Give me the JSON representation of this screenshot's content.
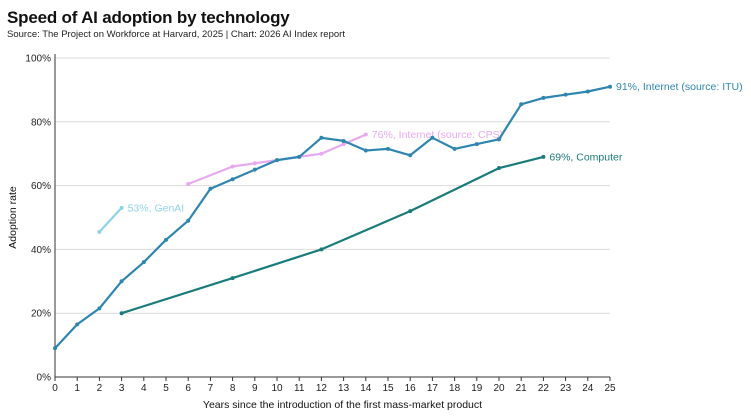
{
  "header": {
    "title": "Speed of AI adoption by technology",
    "subtitle": "Source: The Project on Workforce at Harvard, 2025 | Chart: 2026 AI Index report"
  },
  "chart_data": {
    "type": "line",
    "title": "Speed of AI adoption by technology",
    "subtitle": "Source: The Project on Workforce at Harvard, 2025 | Chart: 2026 AI Index report",
    "xlabel": "Years since the introduction of the first mass-market product",
    "ylabel": "Adoption rate",
    "xlim": [
      0,
      25
    ],
    "ylim": [
      0,
      100
    ],
    "xticks": [
      "0",
      "1",
      "2",
      "3",
      "4",
      "5",
      "6",
      "7",
      "8",
      "9",
      "10",
      "11",
      "12",
      "13",
      "14",
      "15",
      "16",
      "17",
      "18",
      "19",
      "20",
      "21",
      "22",
      "23",
      "24",
      "25"
    ],
    "yticks": [
      "0%",
      "20%",
      "40%",
      "60%",
      "80%",
      "100%"
    ],
    "grid": "horizontal",
    "series": [
      {
        "label": "53%, GenAI",
        "color": "#8fd3ea",
        "points": [
          [
            2,
            45.5
          ],
          [
            3,
            53
          ]
        ]
      },
      {
        "label": "76%, Internet (source: CPS)",
        "color": "#e7a9ef",
        "points": [
          [
            6,
            60.5
          ],
          [
            8,
            66
          ],
          [
            9,
            67
          ],
          [
            10,
            68
          ],
          [
            11,
            69
          ],
          [
            12,
            70
          ],
          [
            13,
            73
          ],
          [
            14,
            76
          ]
        ]
      },
      {
        "label": "91%, Internet (source: ITU)",
        "color": "#2e86b0",
        "points": [
          [
            0,
            9
          ],
          [
            1,
            16.5
          ],
          [
            2,
            21.5
          ],
          [
            3,
            30
          ],
          [
            4,
            36
          ],
          [
            5,
            43
          ],
          [
            6,
            49
          ],
          [
            7,
            59
          ],
          [
            8,
            62
          ],
          [
            9,
            65
          ],
          [
            10,
            68
          ],
          [
            11,
            69
          ],
          [
            12,
            75
          ],
          [
            13,
            74
          ],
          [
            14,
            71
          ],
          [
            15,
            71.5
          ],
          [
            16,
            69.5
          ],
          [
            17,
            75
          ],
          [
            18,
            71.5
          ],
          [
            19,
            73
          ],
          [
            20,
            74.5
          ],
          [
            21,
            85.5
          ],
          [
            22,
            87.5
          ],
          [
            23,
            88.5
          ],
          [
            24,
            89.5
          ],
          [
            25,
            91
          ]
        ]
      },
      {
        "label": "69%, Computer",
        "color": "#1a7b7b",
        "points": [
          [
            3,
            20
          ],
          [
            8,
            31
          ],
          [
            12,
            40
          ],
          [
            16,
            52
          ],
          [
            20,
            65.5
          ],
          [
            22,
            69
          ]
        ]
      }
    ]
  }
}
